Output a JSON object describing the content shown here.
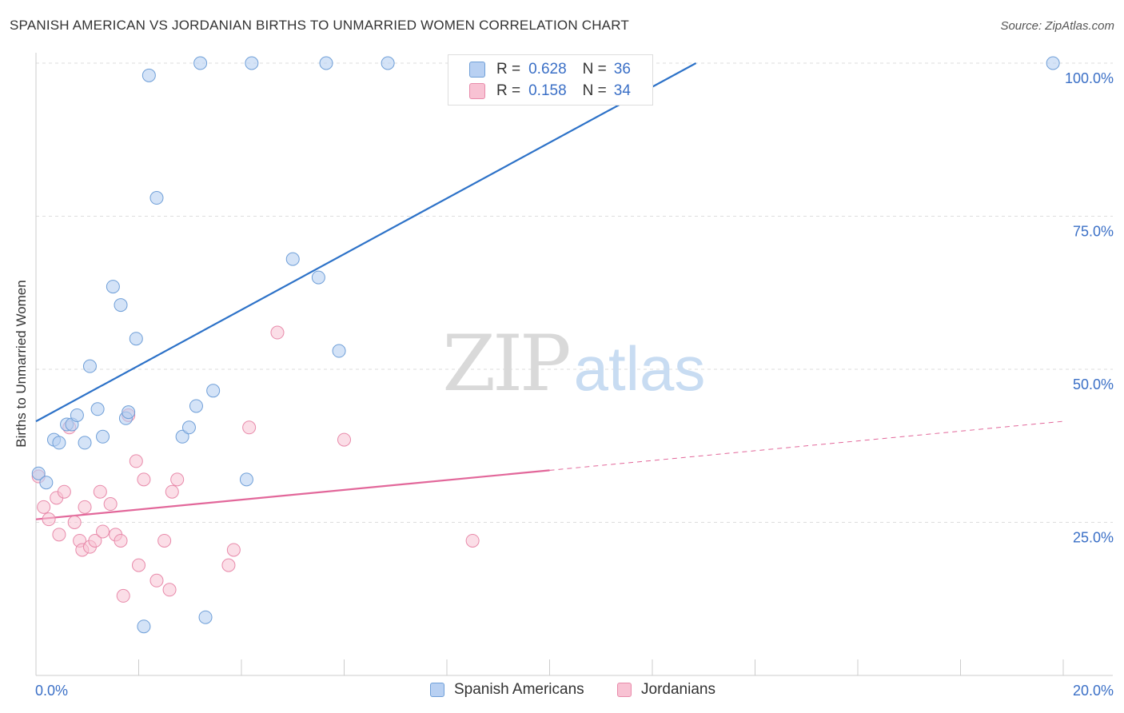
{
  "title": "SPANISH AMERICAN VS JORDANIAN BIRTHS TO UNMARRIED WOMEN CORRELATION CHART",
  "source": "Source: ZipAtlas.com",
  "watermark": {
    "zip": "ZIP",
    "atlas": "atlas"
  },
  "legend_stats": [
    {
      "r_label": "R =",
      "r_value": "0.628",
      "n_label": "N =",
      "n_value": "36"
    },
    {
      "r_label": "R =",
      "r_value": "0.158",
      "n_label": "N =",
      "n_value": "34"
    }
  ],
  "legend_bottom": [
    "Spanish Americans",
    "Jordanians"
  ],
  "colors": {
    "blue_fill": "#b8d0f2",
    "blue_stroke": "#6f9fd8",
    "blue_line": "#2d72c8",
    "pink_fill": "#f8c2d3",
    "pink_stroke": "#e88aaa",
    "pink_line": "#e2679a",
    "axis_label": "#3a6fc6",
    "grid": "#dddddd"
  },
  "chart_data": {
    "type": "scatter",
    "title": "SPANISH AMERICAN VS JORDANIAN BIRTHS TO UNMARRIED WOMEN CORRELATION CHART",
    "xlabel": "",
    "ylabel": "Births to Unmarried Women",
    "xlim": [
      0,
      20
    ],
    "ylim": [
      0,
      100
    ],
    "x_tick_labels": [
      "0.0%",
      "20.0%"
    ],
    "y_tick_labels": [
      "25.0%",
      "50.0%",
      "75.0%",
      "100.0%"
    ],
    "y_ticks": [
      25,
      50,
      75,
      100
    ],
    "grid": true,
    "legend_placement": "top-center",
    "series": [
      {
        "name": "Spanish Americans",
        "r": 0.628,
        "n": 36,
        "points": [
          [
            0.05,
            33.0
          ],
          [
            0.2,
            31.5
          ],
          [
            0.35,
            38.5
          ],
          [
            0.45,
            38.0
          ],
          [
            0.6,
            41.0
          ],
          [
            0.7,
            41.0
          ],
          [
            0.8,
            42.5
          ],
          [
            0.95,
            38.0
          ],
          [
            1.05,
            50.5
          ],
          [
            1.2,
            43.5
          ],
          [
            1.3,
            39.0
          ],
          [
            1.5,
            63.5
          ],
          [
            1.65,
            60.5
          ],
          [
            1.75,
            42.0
          ],
          [
            1.8,
            43.0
          ],
          [
            1.95,
            55.0
          ],
          [
            2.1,
            8.0
          ],
          [
            2.2,
            98.0
          ],
          [
            2.35,
            78.0
          ],
          [
            2.85,
            39.0
          ],
          [
            2.98,
            40.5
          ],
          [
            3.12,
            44.0
          ],
          [
            3.3,
            9.5
          ],
          [
            3.45,
            46.5
          ],
          [
            3.2,
            100.0
          ],
          [
            4.1,
            32.0
          ],
          [
            4.2,
            100.0
          ],
          [
            5.0,
            68.0
          ],
          [
            5.5,
            65.0
          ],
          [
            5.65,
            100.0
          ],
          [
            5.9,
            53.0
          ],
          [
            6.85,
            100.0
          ],
          [
            8.8,
            100.0
          ],
          [
            9.1,
            100.0
          ],
          [
            11.2,
            100.0
          ],
          [
            19.8,
            100.0
          ]
        ],
        "trend": {
          "x": [
            0.0,
            12.85
          ],
          "y": [
            41.5,
            100.0
          ]
        }
      },
      {
        "name": "Jordanians",
        "r": 0.158,
        "n": 34,
        "points": [
          [
            0.05,
            32.5
          ],
          [
            0.15,
            27.5
          ],
          [
            0.25,
            25.5
          ],
          [
            0.4,
            29.0
          ],
          [
            0.45,
            23.0
          ],
          [
            0.55,
            30.0
          ],
          [
            0.65,
            40.5
          ],
          [
            0.75,
            25.0
          ],
          [
            0.85,
            22.0
          ],
          [
            0.9,
            20.5
          ],
          [
            0.95,
            27.5
          ],
          [
            1.05,
            21.0
          ],
          [
            1.15,
            22.0
          ],
          [
            1.25,
            30.0
          ],
          [
            1.3,
            23.5
          ],
          [
            1.45,
            28.0
          ],
          [
            1.55,
            23.0
          ],
          [
            1.65,
            22.0
          ],
          [
            1.7,
            13.0
          ],
          [
            1.8,
            42.5
          ],
          [
            1.95,
            35.0
          ],
          [
            2.0,
            18.0
          ],
          [
            2.1,
            32.0
          ],
          [
            2.35,
            15.5
          ],
          [
            2.5,
            22.0
          ],
          [
            2.6,
            14.0
          ],
          [
            2.65,
            30.0
          ],
          [
            2.75,
            32.0
          ],
          [
            3.75,
            18.0
          ],
          [
            3.85,
            20.5
          ],
          [
            4.15,
            40.5
          ],
          [
            4.7,
            56.0
          ],
          [
            6.0,
            38.5
          ],
          [
            8.5,
            22.0
          ]
        ],
        "trend": {
          "x": [
            0.0,
            10.0
          ],
          "y": [
            25.5,
            33.5
          ]
        },
        "trend_dashed": {
          "x": [
            10.0,
            20.0
          ],
          "y": [
            33.5,
            41.5
          ]
        }
      }
    ]
  }
}
